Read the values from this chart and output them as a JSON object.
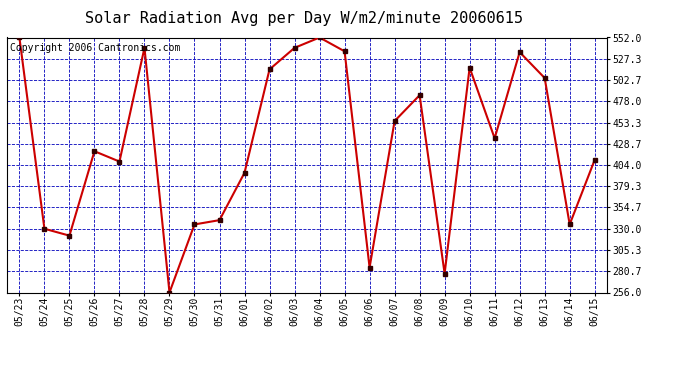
{
  "title": "Solar Radiation Avg per Day W/m2/minute 20060615",
  "copyright": "Copyright 2006 Cantronics.com",
  "dates": [
    "05/23",
    "05/24",
    "05/25",
    "05/26",
    "05/27",
    "05/28",
    "05/29",
    "05/30",
    "05/31",
    "06/01",
    "06/02",
    "06/03",
    "06/04",
    "06/05",
    "06/06",
    "06/07",
    "06/08",
    "06/09",
    "06/10",
    "06/11",
    "06/12",
    "06/13",
    "06/14",
    "06/15"
  ],
  "values": [
    552.0,
    330.0,
    322.0,
    420.0,
    408.0,
    540.0,
    256.0,
    335.0,
    340.0,
    395.0,
    515.0,
    540.0,
    552.0,
    536.0,
    285.0,
    455.0,
    485.0,
    278.0,
    517.0,
    435.0,
    535.0,
    505.0,
    335.0,
    410.0
  ],
  "ylim": [
    256.0,
    552.0
  ],
  "yticks": [
    256.0,
    280.7,
    305.3,
    330.0,
    354.7,
    379.3,
    404.0,
    428.7,
    453.3,
    478.0,
    502.7,
    527.3,
    552.0
  ],
  "ytick_labels": [
    "256.0",
    "280.7",
    "305.3",
    "330.0",
    "354.7",
    "379.3",
    "404.0",
    "428.7",
    "453.3",
    "478.0",
    "502.7",
    "527.3",
    "552.0"
  ],
  "line_color": "#cc0000",
  "marker_color": "#330000",
  "bg_color": "#ffffff",
  "plot_bg_color": "#ffffff",
  "grid_color": "#0000bb",
  "title_fontsize": 11,
  "copyright_fontsize": 7,
  "tick_fontsize": 7
}
